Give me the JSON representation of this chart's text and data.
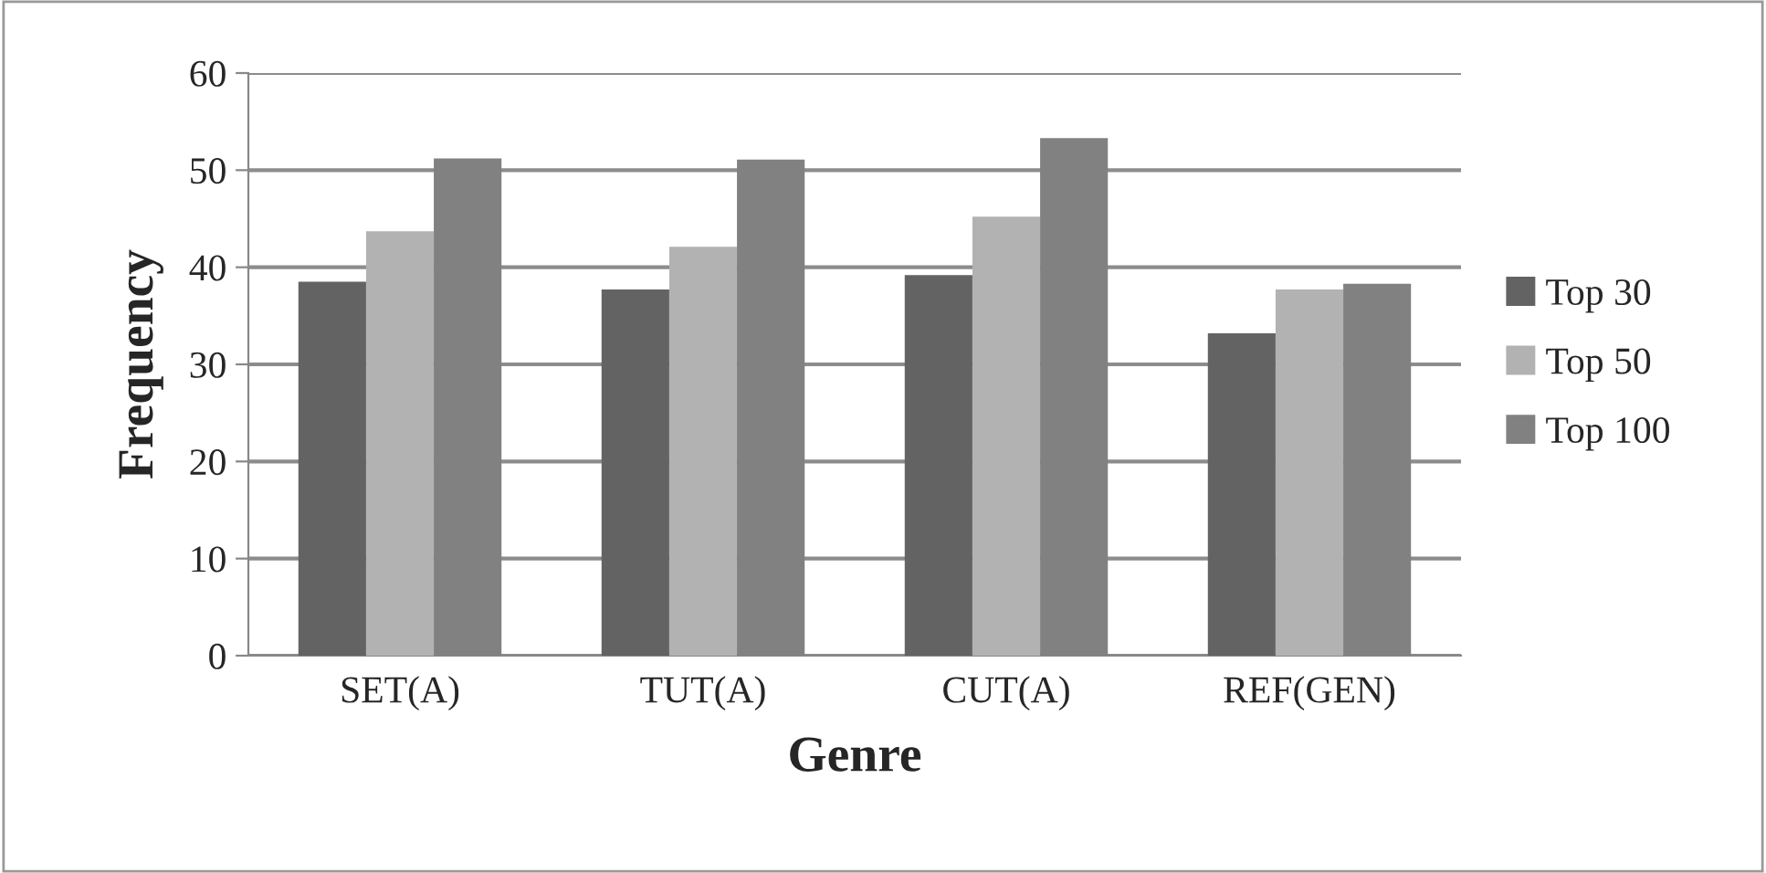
{
  "chart_data": {
    "type": "bar",
    "xlabel": "Genre",
    "ylabel": "Frequency",
    "categories": [
      "SET(A)",
      "TUT(A)",
      "CUT(A)",
      "REF(GEN)"
    ],
    "series": [
      {
        "name": "Top 30",
        "color": "#636363",
        "values": [
          38.5,
          37.7,
          39.2,
          33.2
        ]
      },
      {
        "name": "Top 50",
        "color": "#b2b2b2",
        "values": [
          43.7,
          42.1,
          45.2,
          37.7
        ]
      },
      {
        "name": "Top 100",
        "color": "#818181",
        "values": [
          51.2,
          51.1,
          53.3,
          38.3
        ]
      }
    ],
    "ylim": [
      0,
      60
    ],
    "yticks": [
      0,
      10,
      20,
      30,
      40,
      50,
      60
    ],
    "grid": "y",
    "legend": "right"
  }
}
